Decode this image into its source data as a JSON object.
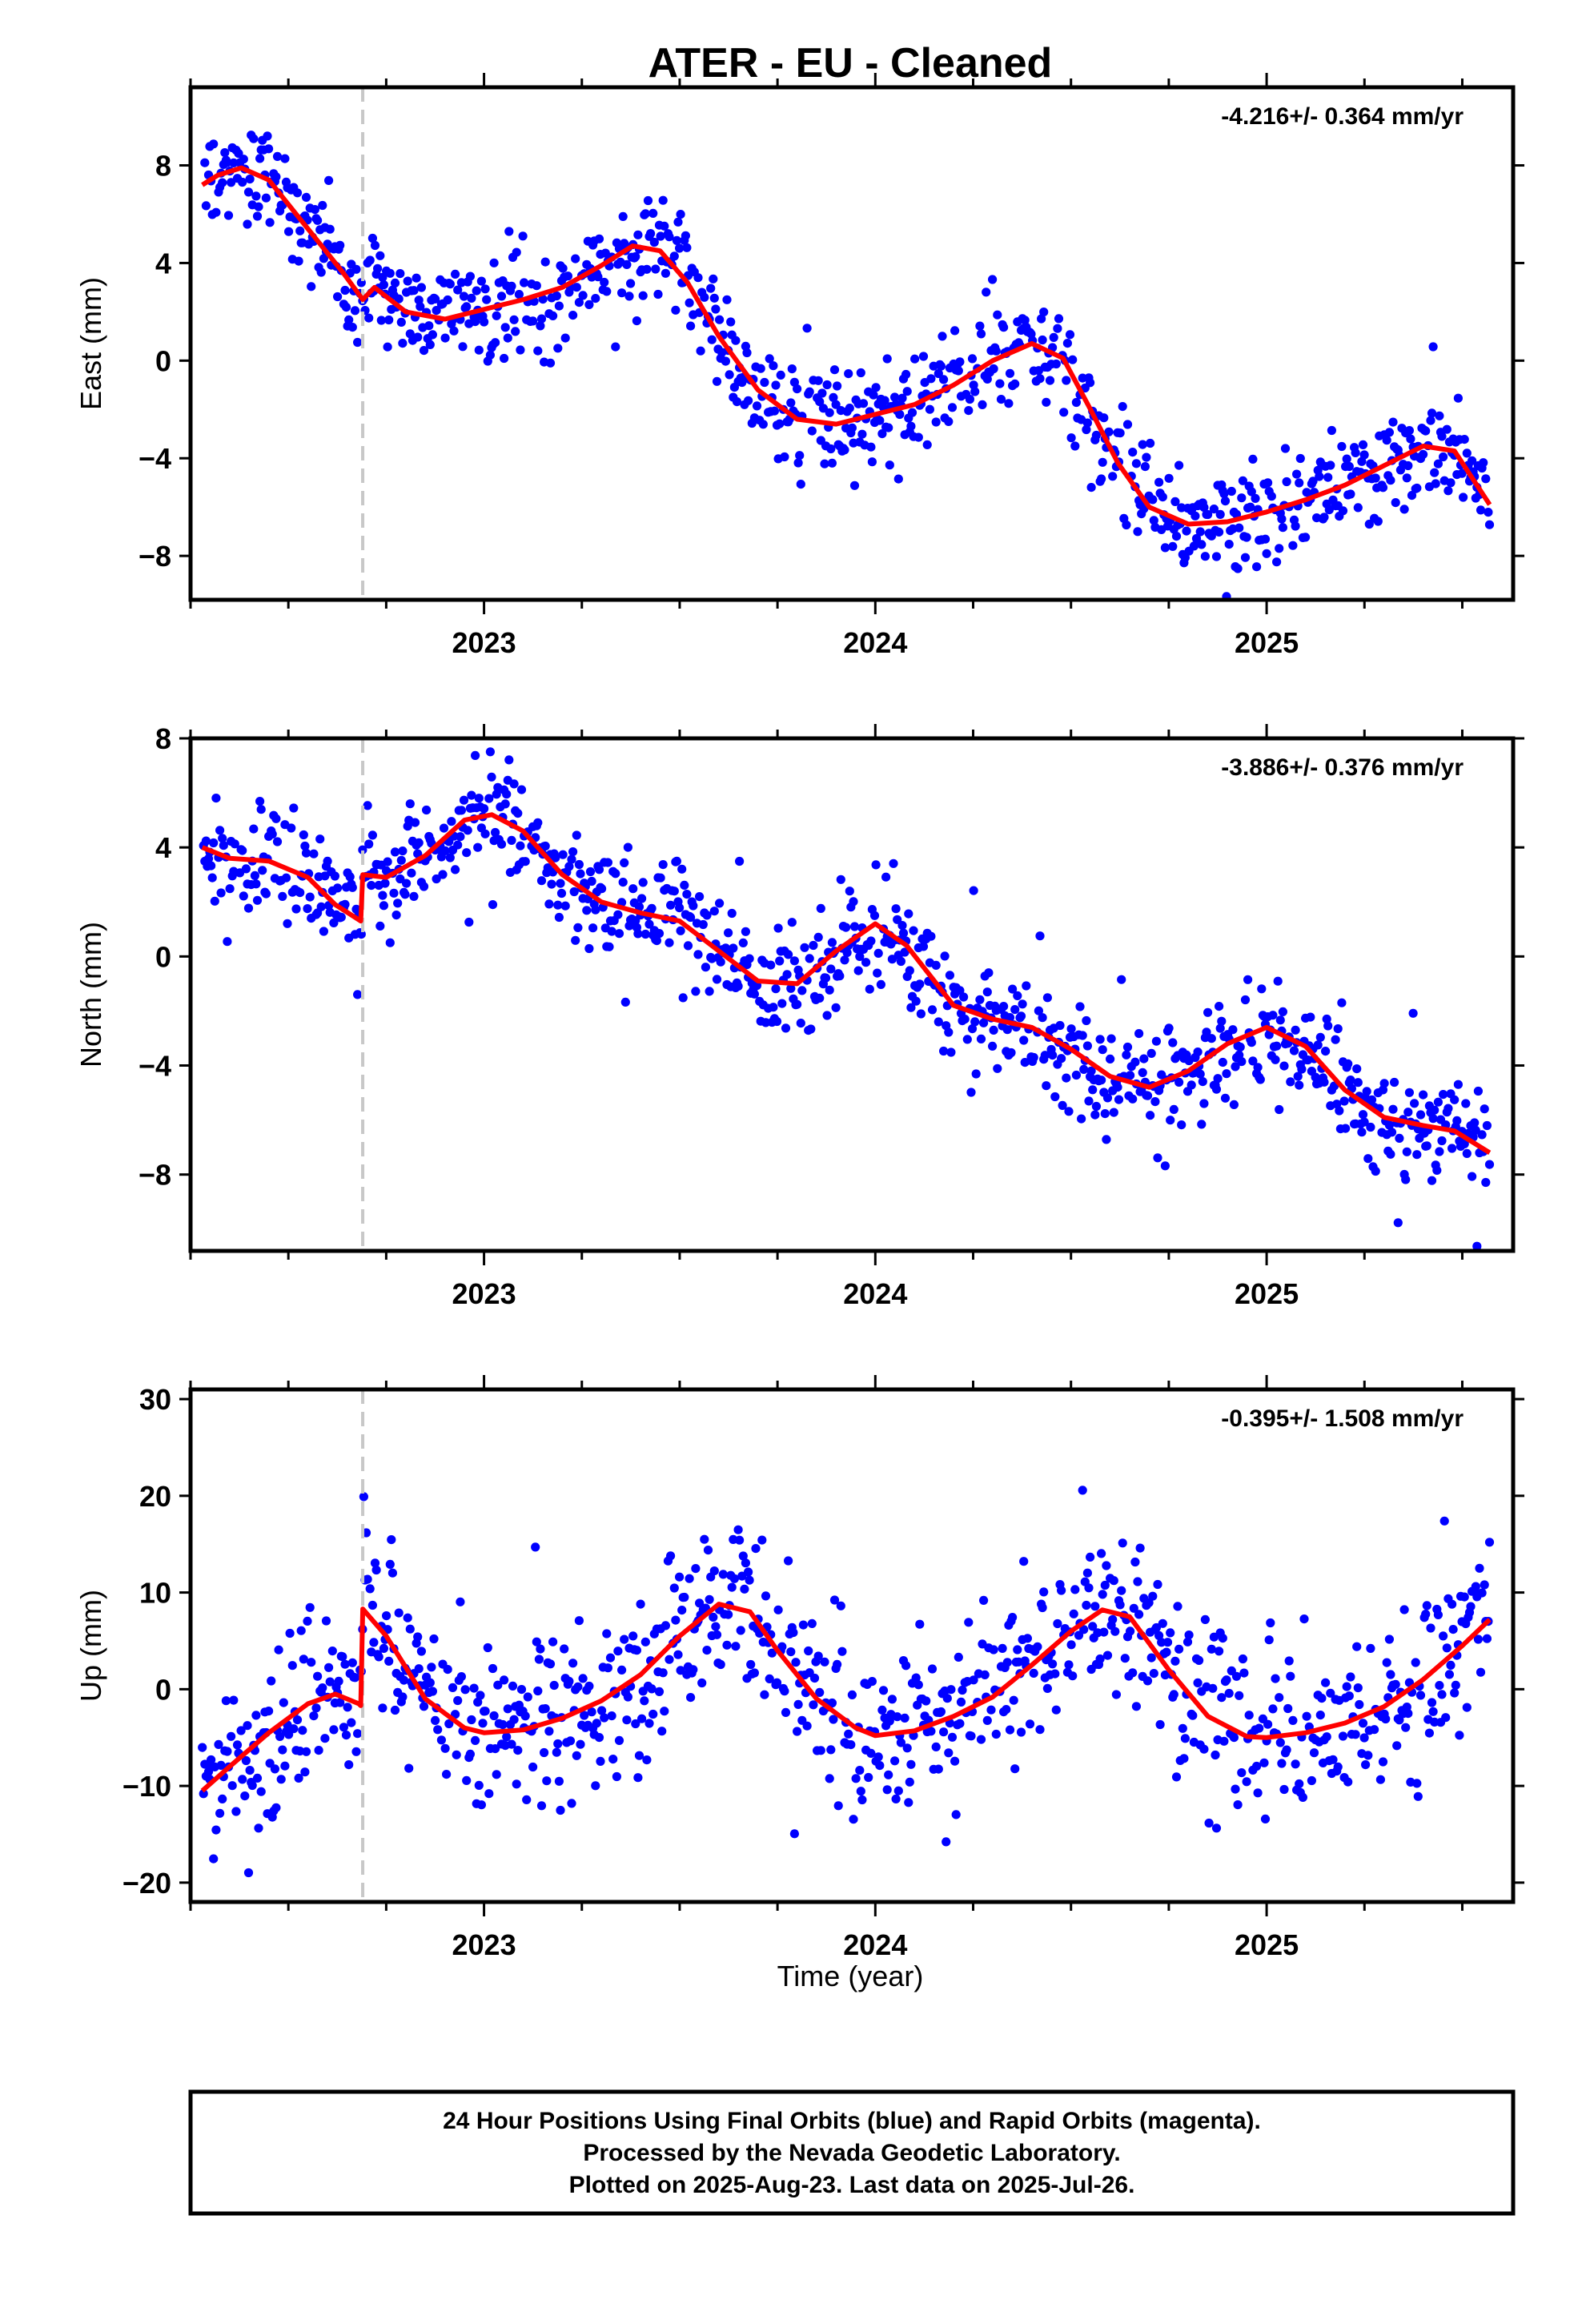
{
  "title": "ATER  - EU - Cleaned",
  "xlabel": "Time (year)",
  "footer": [
    "24 Hour Positions Using Final Orbits (blue) and Rapid Orbits (magenta).",
    "Processed by the Nevada Geodetic Laboratory.",
    "Plotted on 2025-Aug-23. Last data on 2025-Jul-26."
  ],
  "colors": {
    "final_orbits": "#0000ff",
    "rapid_orbits": "#ff00ff",
    "model": "#ff0000",
    "event_line": "#c8c8c8"
  },
  "chart_data": [
    {
      "type": "scatter",
      "panel": "east",
      "ylabel": "East (mm)",
      "rate": "-4.216+/- 0.364 mm/yr",
      "xlim": [
        2022.25,
        2025.63
      ],
      "ylim": [
        -9.8,
        11.2
      ],
      "yticks": [
        8,
        4,
        0,
        -4,
        -8
      ],
      "yticklabels": [
        "8",
        "4",
        "0",
        "−4",
        "−8"
      ],
      "xticks": [
        2023,
        2024,
        2025
      ],
      "xticklabels": [
        "2023",
        "2024",
        "2025"
      ],
      "event_time": 2022.69,
      "model_x": [
        2022.28,
        2022.32,
        2022.38,
        2022.45,
        2022.52,
        2022.58,
        2022.64,
        2022.69,
        2022.72,
        2022.8,
        2022.9,
        2023.0,
        2023.1,
        2023.2,
        2023.3,
        2023.38,
        2023.45,
        2023.52,
        2023.6,
        2023.7,
        2023.8,
        2023.9,
        2024.0,
        2024.1,
        2024.2,
        2024.3,
        2024.4,
        2024.48,
        2024.55,
        2024.62,
        2024.7,
        2024.8,
        2024.9,
        2025.0,
        2025.1,
        2025.2,
        2025.3,
        2025.4,
        2025.48,
        2025.57
      ],
      "model_y": [
        7.2,
        7.6,
        7.9,
        7.4,
        6.0,
        4.8,
        3.6,
        2.5,
        3.0,
        2.0,
        1.7,
        2.1,
        2.5,
        3.0,
        3.9,
        4.7,
        4.5,
        3.2,
        1.0,
        -1.2,
        -2.4,
        -2.6,
        -2.2,
        -1.8,
        -1.0,
        0.0,
        0.7,
        0.1,
        -2.0,
        -4.2,
        -6.0,
        -6.7,
        -6.6,
        -6.2,
        -5.7,
        -5.1,
        -4.3,
        -3.5,
        -3.7,
        -5.9
      ],
      "obs_x_range": [
        2022.28,
        2025.57
      ],
      "noise_sd": 1.05
    },
    {
      "type": "scatter",
      "panel": "north",
      "ylabel": "North (mm)",
      "rate": "-3.886+/- 0.376 mm/yr",
      "xlim": [
        2022.25,
        2025.63
      ],
      "ylim": [
        -10.8,
        8.0
      ],
      "yticks": [
        8,
        4,
        0,
        -4,
        -8
      ],
      "yticklabels": [
        "8",
        "4",
        "0",
        "−4",
        "−8"
      ],
      "xticks": [
        2023,
        2024,
        2025
      ],
      "xticklabels": [
        "2023",
        "2024",
        "2025"
      ],
      "event_time": 2022.69,
      "model_x": [
        2022.28,
        2022.35,
        2022.45,
        2022.55,
        2022.62,
        2022.685,
        2022.69,
        2022.75,
        2022.85,
        2022.95,
        2023.02,
        2023.1,
        2023.2,
        2023.3,
        2023.4,
        2023.5,
        2023.6,
        2023.7,
        2023.8,
        2023.9,
        2024.0,
        2024.08,
        2024.2,
        2024.3,
        2024.4,
        2024.5,
        2024.6,
        2024.7,
        2024.8,
        2024.9,
        2025.0,
        2025.1,
        2025.2,
        2025.3,
        2025.4,
        2025.48,
        2025.57
      ],
      "model_y": [
        4.0,
        3.6,
        3.5,
        2.9,
        1.9,
        1.3,
        3.0,
        2.9,
        3.7,
        5.0,
        5.2,
        4.6,
        3.0,
        2.0,
        1.6,
        1.3,
        0.2,
        -0.9,
        -1.0,
        0.2,
        1.2,
        0.4,
        -1.8,
        -2.3,
        -2.6,
        -3.4,
        -4.4,
        -4.8,
        -4.2,
        -3.2,
        -2.6,
        -3.3,
        -4.9,
        -5.9,
        -6.2,
        -6.4,
        -7.2
      ],
      "obs_x_range": [
        2022.28,
        2025.57
      ],
      "noise_sd": 1.0
    },
    {
      "type": "scatter",
      "panel": "up",
      "ylabel": "Up (mm)",
      "rate": "-0.395+/- 1.508 mm/yr",
      "xlim": [
        2022.25,
        2025.63
      ],
      "ylim": [
        -22,
        31
      ],
      "yticks": [
        30,
        20,
        10,
        0,
        -10,
        -20
      ],
      "yticklabels": [
        "30",
        "20",
        "10",
        "0",
        "−10",
        "−20"
      ],
      "xticks": [
        2023,
        2024,
        2025
      ],
      "xticklabels": [
        "2023",
        "2024",
        "2025"
      ],
      "event_time": 2022.69,
      "model_x": [
        2022.28,
        2022.35,
        2022.45,
        2022.55,
        2022.62,
        2022.68,
        2022.685,
        2022.69,
        2022.75,
        2022.85,
        2022.95,
        2023.0,
        2023.1,
        2023.2,
        2023.3,
        2023.4,
        2023.5,
        2023.6,
        2023.68,
        2023.75,
        2023.85,
        2023.95,
        2024.0,
        2024.1,
        2024.2,
        2024.3,
        2024.4,
        2024.5,
        2024.58,
        2024.65,
        2024.75,
        2024.85,
        2024.95,
        2025.0,
        2025.1,
        2025.2,
        2025.3,
        2025.4,
        2025.5,
        2025.57
      ],
      "model_y": [
        -10.5,
        -8.0,
        -4.5,
        -1.5,
        -0.5,
        -1.5,
        -1.7,
        8.3,
        5.5,
        -1.0,
        -4.0,
        -4.5,
        -4.2,
        -3.0,
        -1.2,
        1.5,
        5.5,
        8.8,
        8.0,
        4.0,
        -1.0,
        -4.0,
        -4.8,
        -4.3,
        -2.8,
        -0.8,
        2.5,
        6.0,
        8.2,
        7.5,
        2.0,
        -2.8,
        -4.9,
        -5.0,
        -4.5,
        -3.5,
        -1.8,
        1.0,
        4.5,
        7.2
      ],
      "obs_x_range": [
        2022.28,
        2025.57
      ],
      "noise_sd": 4.5
    }
  ]
}
